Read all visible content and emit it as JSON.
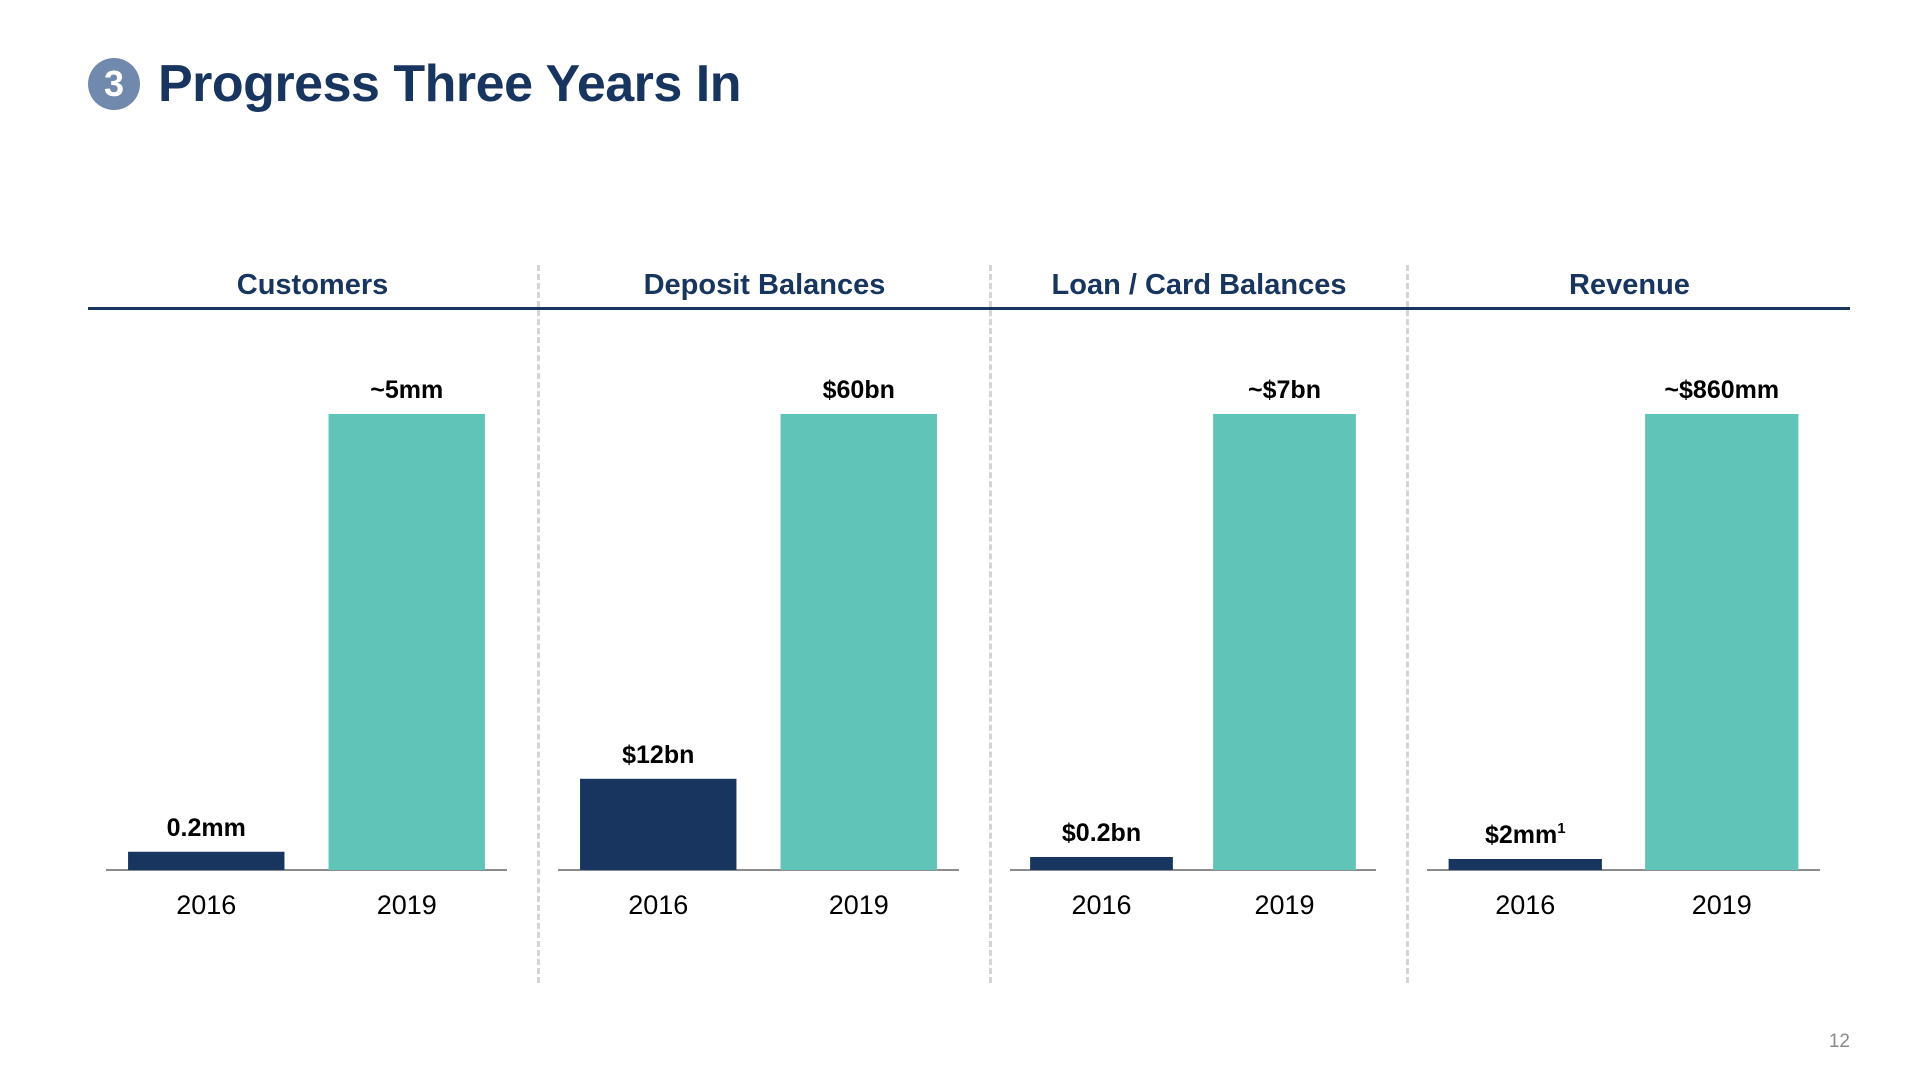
{
  "page": {
    "step_number": "3",
    "title": "Progress Three Years In",
    "page_number": "12"
  },
  "colors": {
    "title": "#17355e",
    "bar_2016": "#17355e",
    "bar_2019": "#61c4b8",
    "badge": "#7189ad",
    "axis": "#8c8c8c",
    "divider": "#d4d4d4"
  },
  "chart_data": [
    {
      "type": "bar",
      "title": "Customers",
      "categories": [
        "2016",
        "2019"
      ],
      "values": [
        0.2,
        5
      ],
      "unit": "mm",
      "data_labels": [
        "0.2mm",
        "~5mm"
      ],
      "data_label_superscripts": [
        "",
        ""
      ],
      "ylim": [
        0,
        5
      ]
    },
    {
      "type": "bar",
      "title": "Deposit Balances",
      "categories": [
        "2016",
        "2019"
      ],
      "values": [
        12,
        60
      ],
      "unit": "$bn",
      "data_labels": [
        "$12bn",
        "$60bn"
      ],
      "data_label_superscripts": [
        "",
        ""
      ],
      "ylim": [
        0,
        60
      ]
    },
    {
      "type": "bar",
      "title": "Loan / Card Balances",
      "categories": [
        "2016",
        "2019"
      ],
      "values": [
        0.2,
        7
      ],
      "unit": "$bn",
      "data_labels": [
        "$0.2bn",
        "~$7bn"
      ],
      "data_label_superscripts": [
        "",
        ""
      ],
      "ylim": [
        0,
        7
      ]
    },
    {
      "type": "bar",
      "title": "Revenue",
      "categories": [
        "2016",
        "2019"
      ],
      "values": [
        2,
        860
      ],
      "unit": "$mm",
      "data_labels": [
        "$2mm",
        "~$860mm"
      ],
      "data_label_superscripts": [
        "1",
        ""
      ],
      "ylim": [
        0,
        860
      ]
    }
  ]
}
